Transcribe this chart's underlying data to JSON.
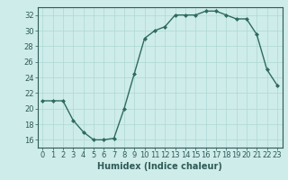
{
  "x": [
    0,
    1,
    2,
    3,
    4,
    5,
    6,
    7,
    8,
    9,
    10,
    11,
    12,
    13,
    14,
    15,
    16,
    17,
    18,
    19,
    20,
    21,
    22,
    23
  ],
  "y": [
    21,
    21,
    21,
    18.5,
    17,
    16,
    16,
    16.2,
    20,
    24.5,
    29,
    30,
    30.5,
    32,
    32,
    32,
    32.5,
    32.5,
    32,
    31.5,
    31.5,
    29.5,
    25,
    23
  ],
  "line_color": "#2e6b5e",
  "marker": "D",
  "marker_size": 2.0,
  "bg_color": "#ceecea",
  "grid_color": "#aed8d4",
  "xlabel": "Humidex (Indice chaleur)",
  "ylim": [
    15,
    33
  ],
  "yticks": [
    16,
    18,
    20,
    22,
    24,
    26,
    28,
    30,
    32
  ],
  "xticks": [
    0,
    1,
    2,
    3,
    4,
    5,
    6,
    7,
    8,
    9,
    10,
    11,
    12,
    13,
    14,
    15,
    16,
    17,
    18,
    19,
    20,
    21,
    22,
    23
  ],
  "xlabel_fontsize": 7,
  "tick_fontsize": 6,
  "line_width": 1.0
}
